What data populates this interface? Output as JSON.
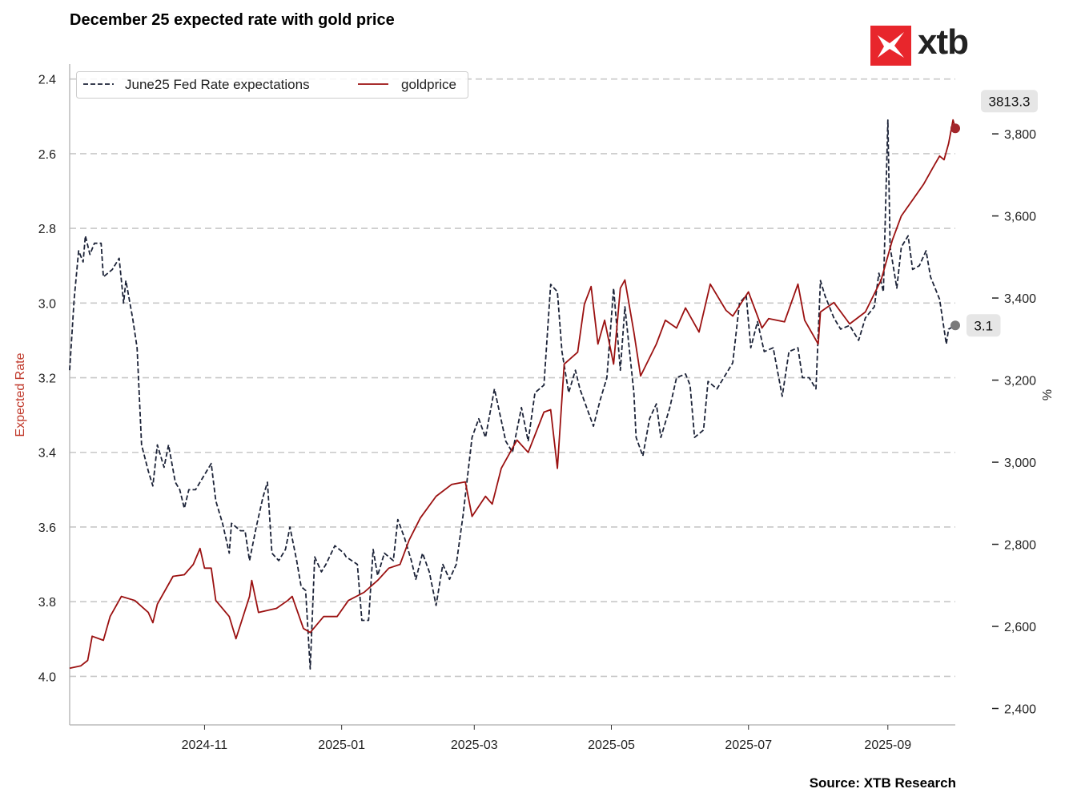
{
  "chart_data": {
    "type": "line",
    "title": "December 25 expected rate with gold price",
    "source": "Source: XTB Research",
    "logo_text": "xtb",
    "xlim": [
      "2024-09-02",
      "2025-10-01"
    ],
    "x_ticks": [
      "2024-11",
      "2025-01",
      "2025-03",
      "2025-05",
      "2025-07",
      "2025-09"
    ],
    "x_tick_dates": [
      "2024-11-01",
      "2025-01-01",
      "2025-03-01",
      "2025-05-01",
      "2025-07-01",
      "2025-09-01"
    ],
    "left_axis": {
      "label": "Expected Rate",
      "label_color": "#c0392b",
      "ylim": [
        4.13,
        2.36
      ],
      "inverted": true,
      "ticks": [
        "2.4",
        "2.6",
        "2.8",
        "3.0",
        "3.2",
        "3.4",
        "3.6",
        "3.8",
        "4.0"
      ]
    },
    "right_axis": {
      "label": "%",
      "ylim": [
        2360,
        3970
      ],
      "ticks": [
        "2,400",
        "2,600",
        "2,800",
        "3,000",
        "3,200",
        "3,400",
        "3,600",
        "3,800"
      ]
    },
    "grid": "horizontal dashed",
    "legend_position": "top-left",
    "series": [
      {
        "name": "June25 Fed Rate expectations",
        "axis": "left",
        "style": "dashed",
        "color": "#1c2338",
        "last_label": "3.1",
        "marker_color": "#7a7a7a",
        "points": [
          [
            "2024-09-02",
            3.18
          ],
          [
            "2024-09-04",
            2.99
          ],
          [
            "2024-09-06",
            2.86
          ],
          [
            "2024-09-08",
            2.89
          ],
          [
            "2024-09-09",
            2.82
          ],
          [
            "2024-09-11",
            2.87
          ],
          [
            "2024-09-13",
            2.84
          ],
          [
            "2024-09-16",
            2.84
          ],
          [
            "2024-09-17",
            2.93
          ],
          [
            "2024-09-21",
            2.91
          ],
          [
            "2024-09-24",
            2.88
          ],
          [
            "2024-09-26",
            3.0
          ],
          [
            "2024-09-27",
            2.94
          ],
          [
            "2024-09-30",
            3.04
          ],
          [
            "2024-10-02",
            3.12
          ],
          [
            "2024-10-04",
            3.38
          ],
          [
            "2024-10-07",
            3.45
          ],
          [
            "2024-10-09",
            3.49
          ],
          [
            "2024-10-11",
            3.38
          ],
          [
            "2024-10-14",
            3.44
          ],
          [
            "2024-10-16",
            3.38
          ],
          [
            "2024-10-19",
            3.48
          ],
          [
            "2024-10-21",
            3.5
          ],
          [
            "2024-10-23",
            3.55
          ],
          [
            "2024-10-25",
            3.5
          ],
          [
            "2024-10-28",
            3.5
          ],
          [
            "2024-11-01",
            3.46
          ],
          [
            "2024-11-04",
            3.43
          ],
          [
            "2024-11-06",
            3.53
          ],
          [
            "2024-11-09",
            3.59
          ],
          [
            "2024-11-12",
            3.67
          ],
          [
            "2024-11-13",
            3.59
          ],
          [
            "2024-11-17",
            3.61
          ],
          [
            "2024-11-19",
            3.61
          ],
          [
            "2024-11-21",
            3.69
          ],
          [
            "2024-11-24",
            3.6
          ],
          [
            "2024-11-27",
            3.52
          ],
          [
            "2024-11-29",
            3.48
          ],
          [
            "2024-12-01",
            3.67
          ],
          [
            "2024-12-04",
            3.69
          ],
          [
            "2024-12-07",
            3.66
          ],
          [
            "2024-12-09",
            3.6
          ],
          [
            "2024-12-12",
            3.69
          ],
          [
            "2024-12-14",
            3.76
          ],
          [
            "2024-12-16",
            3.77
          ],
          [
            "2024-12-18",
            3.98
          ],
          [
            "2024-12-20",
            3.68
          ],
          [
            "2024-12-23",
            3.72
          ],
          [
            "2024-12-25",
            3.7
          ],
          [
            "2024-12-29",
            3.65
          ],
          [
            "2025-01-02",
            3.67
          ],
          [
            "2025-01-03",
            3.68
          ],
          [
            "2025-01-08",
            3.7
          ],
          [
            "2025-01-10",
            3.85
          ],
          [
            "2025-01-13",
            3.85
          ],
          [
            "2025-01-15",
            3.66
          ],
          [
            "2025-01-17",
            3.73
          ],
          [
            "2025-01-20",
            3.67
          ],
          [
            "2025-01-24",
            3.69
          ],
          [
            "2025-01-26",
            3.58
          ],
          [
            "2025-01-29",
            3.63
          ],
          [
            "2025-02-01",
            3.69
          ],
          [
            "2025-02-03",
            3.74
          ],
          [
            "2025-02-06",
            3.67
          ],
          [
            "2025-02-09",
            3.72
          ],
          [
            "2025-02-12",
            3.81
          ],
          [
            "2025-02-15",
            3.7
          ],
          [
            "2025-02-18",
            3.74
          ],
          [
            "2025-02-21",
            3.7
          ],
          [
            "2025-02-24",
            3.57
          ],
          [
            "2025-02-28",
            3.36
          ],
          [
            "2025-03-03",
            3.31
          ],
          [
            "2025-03-06",
            3.36
          ],
          [
            "2025-03-10",
            3.23
          ],
          [
            "2025-03-15",
            3.37
          ],
          [
            "2025-03-18",
            3.4
          ],
          [
            "2025-03-22",
            3.28
          ],
          [
            "2025-03-25",
            3.37
          ],
          [
            "2025-03-28",
            3.24
          ],
          [
            "2025-04-01",
            3.22
          ],
          [
            "2025-04-04",
            2.95
          ],
          [
            "2025-04-07",
            2.97
          ],
          [
            "2025-04-09",
            3.13
          ],
          [
            "2025-04-12",
            3.24
          ],
          [
            "2025-04-15",
            3.18
          ],
          [
            "2025-04-17",
            3.23
          ],
          [
            "2025-04-23",
            3.33
          ],
          [
            "2025-04-26",
            3.26
          ],
          [
            "2025-04-29",
            3.2
          ],
          [
            "2025-05-02",
            2.96
          ],
          [
            "2025-05-05",
            3.18
          ],
          [
            "2025-05-07",
            3.01
          ],
          [
            "2025-05-11",
            3.24
          ],
          [
            "2025-05-12",
            3.36
          ],
          [
            "2025-05-15",
            3.41
          ],
          [
            "2025-05-18",
            3.31
          ],
          [
            "2025-05-21",
            3.27
          ],
          [
            "2025-05-23",
            3.36
          ],
          [
            "2025-05-27",
            3.28
          ],
          [
            "2025-05-30",
            3.2
          ],
          [
            "2025-06-03",
            3.19
          ],
          [
            "2025-06-05",
            3.22
          ],
          [
            "2025-06-07",
            3.36
          ],
          [
            "2025-06-11",
            3.34
          ],
          [
            "2025-06-13",
            3.21
          ],
          [
            "2025-06-17",
            3.23
          ],
          [
            "2025-06-21",
            3.19
          ],
          [
            "2025-06-24",
            3.16
          ],
          [
            "2025-06-27",
            3.0
          ],
          [
            "2025-06-30",
            2.98
          ],
          [
            "2025-07-02",
            3.12
          ],
          [
            "2025-07-05",
            3.05
          ],
          [
            "2025-07-08",
            3.13
          ],
          [
            "2025-07-12",
            3.12
          ],
          [
            "2025-07-16",
            3.25
          ],
          [
            "2025-07-19",
            3.13
          ],
          [
            "2025-07-23",
            3.12
          ],
          [
            "2025-07-25",
            3.2
          ],
          [
            "2025-07-28",
            3.2
          ],
          [
            "2025-07-31",
            3.23
          ],
          [
            "2025-08-02",
            2.94
          ],
          [
            "2025-08-04",
            2.98
          ],
          [
            "2025-08-08",
            3.04
          ],
          [
            "2025-08-11",
            3.07
          ],
          [
            "2025-08-15",
            3.06
          ],
          [
            "2025-08-19",
            3.1
          ],
          [
            "2025-08-22",
            3.04
          ],
          [
            "2025-08-26",
            3.01
          ],
          [
            "2025-08-28",
            2.92
          ],
          [
            "2025-08-30",
            2.97
          ],
          [
            "2025-09-01",
            2.51
          ],
          [
            "2025-09-02",
            2.85
          ],
          [
            "2025-09-05",
            2.96
          ],
          [
            "2025-09-07",
            2.85
          ],
          [
            "2025-09-10",
            2.82
          ],
          [
            "2025-09-12",
            2.91
          ],
          [
            "2025-09-15",
            2.9
          ],
          [
            "2025-09-18",
            2.86
          ],
          [
            "2025-09-20",
            2.93
          ],
          [
            "2025-09-24",
            2.99
          ],
          [
            "2025-09-27",
            3.11
          ],
          [
            "2025-09-28",
            3.07
          ],
          [
            "2025-10-01",
            3.06
          ]
        ]
      },
      {
        "name": "goldprice",
        "axis": "right",
        "style": "solid",
        "color": "#9b1111",
        "last_label": "3813.3",
        "marker_color": "#a3262b",
        "points": [
          [
            "2024-09-02",
            2498
          ],
          [
            "2024-09-07",
            2504
          ],
          [
            "2024-09-10",
            2517
          ],
          [
            "2024-09-12",
            2576
          ],
          [
            "2024-09-17",
            2566
          ],
          [
            "2024-09-20",
            2624
          ],
          [
            "2024-09-25",
            2673
          ],
          [
            "2024-10-01",
            2663
          ],
          [
            "2024-10-07",
            2634
          ],
          [
            "2024-10-09",
            2609
          ],
          [
            "2024-10-11",
            2654
          ],
          [
            "2024-10-18",
            2722
          ],
          [
            "2024-10-23",
            2726
          ],
          [
            "2024-10-27",
            2751
          ],
          [
            "2024-10-30",
            2790
          ],
          [
            "2024-11-01",
            2742
          ],
          [
            "2024-11-04",
            2742
          ],
          [
            "2024-11-06",
            2663
          ],
          [
            "2024-11-12",
            2624
          ],
          [
            "2024-11-15",
            2570
          ],
          [
            "2024-11-21",
            2673
          ],
          [
            "2024-11-22",
            2712
          ],
          [
            "2024-11-25",
            2634
          ],
          [
            "2024-12-03",
            2644
          ],
          [
            "2024-12-08",
            2663
          ],
          [
            "2024-12-10",
            2673
          ],
          [
            "2024-12-15",
            2595
          ],
          [
            "2024-12-18",
            2585
          ],
          [
            "2024-12-24",
            2624
          ],
          [
            "2024-12-30",
            2624
          ],
          [
            "2025-01-04",
            2663
          ],
          [
            "2025-01-11",
            2683
          ],
          [
            "2025-01-17",
            2712
          ],
          [
            "2025-01-22",
            2742
          ],
          [
            "2025-01-27",
            2751
          ],
          [
            "2025-01-31",
            2810
          ],
          [
            "2025-02-05",
            2864
          ],
          [
            "2025-02-12",
            2917
          ],
          [
            "2025-02-19",
            2946
          ],
          [
            "2025-02-25",
            2952
          ],
          [
            "2025-02-28",
            2868
          ],
          [
            "2025-03-06",
            2917
          ],
          [
            "2025-03-09",
            2898
          ],
          [
            "2025-03-13",
            2985
          ],
          [
            "2025-03-20",
            3054
          ],
          [
            "2025-03-25",
            3024
          ],
          [
            "2025-04-01",
            3122
          ],
          [
            "2025-04-04",
            3128
          ],
          [
            "2025-04-07",
            2985
          ],
          [
            "2025-04-10",
            3239
          ],
          [
            "2025-04-16",
            3268
          ],
          [
            "2025-04-19",
            3385
          ],
          [
            "2025-04-22",
            3428
          ],
          [
            "2025-04-25",
            3288
          ],
          [
            "2025-04-28",
            3346
          ],
          [
            "2025-05-02",
            3239
          ],
          [
            "2025-05-05",
            3424
          ],
          [
            "2025-05-07",
            3444
          ],
          [
            "2025-05-11",
            3317
          ],
          [
            "2025-05-14",
            3210
          ],
          [
            "2025-05-21",
            3288
          ],
          [
            "2025-05-25",
            3346
          ],
          [
            "2025-05-30",
            3327
          ],
          [
            "2025-06-03",
            3376
          ],
          [
            "2025-06-09",
            3317
          ],
          [
            "2025-06-14",
            3434
          ],
          [
            "2025-06-21",
            3370
          ],
          [
            "2025-06-24",
            3356
          ],
          [
            "2025-07-01",
            3415
          ],
          [
            "2025-07-07",
            3327
          ],
          [
            "2025-07-10",
            3350
          ],
          [
            "2025-07-17",
            3342
          ],
          [
            "2025-07-23",
            3434
          ],
          [
            "2025-07-26",
            3346
          ],
          [
            "2025-08-01",
            3288
          ],
          [
            "2025-08-02",
            3366
          ],
          [
            "2025-08-08",
            3389
          ],
          [
            "2025-08-15",
            3337
          ],
          [
            "2025-08-22",
            3366
          ],
          [
            "2025-08-29",
            3444
          ],
          [
            "2025-09-03",
            3541
          ],
          [
            "2025-09-07",
            3600
          ],
          [
            "2025-09-12",
            3639
          ],
          [
            "2025-09-17",
            3678
          ],
          [
            "2025-09-21",
            3717
          ],
          [
            "2025-09-24",
            3746
          ],
          [
            "2025-09-26",
            3737
          ],
          [
            "2025-09-28",
            3776
          ],
          [
            "2025-09-30",
            3834
          ],
          [
            "2025-10-01",
            3813.3
          ]
        ]
      }
    ]
  }
}
